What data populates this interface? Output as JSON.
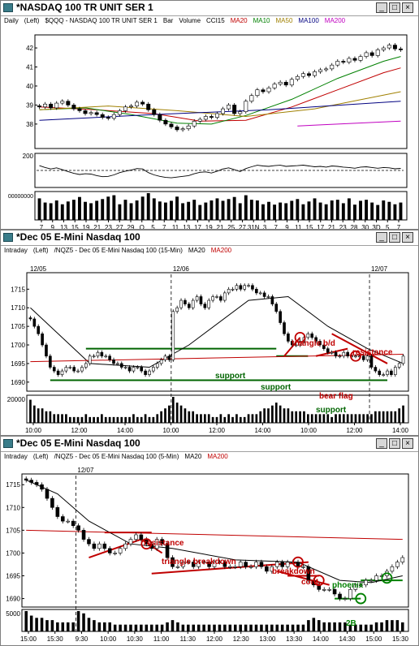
{
  "windows": [
    {
      "title": "*NASDAQ 100 TR UNIT SER 1",
      "timeframe": "Daily",
      "scale_side": "(Left)",
      "symbol": "$QQQ - NASDAQ 100 TR UNIT SER 1",
      "studies": [
        {
          "label": "Bar",
          "color": "#000000"
        },
        {
          "label": "Volume",
          "color": "#000000"
        },
        {
          "label": "CCI15",
          "color": "#000000"
        },
        {
          "label": "MA20",
          "color": "#c00000"
        },
        {
          "label": "MA10",
          "color": "#008000"
        },
        {
          "label": "MA50",
          "color": "#a08000"
        },
        {
          "label": "MA100",
          "color": "#000080"
        },
        {
          "label": "MA200",
          "color": "#c000c0"
        }
      ]
    },
    {
      "title": "*Dec 05 E-Mini Nasdaq 100",
      "timeframe": "Intraday",
      "scale_side": "(Left)",
      "symbol": "/NQZ5 - Dec 05 E-Mini Nasdaq 100 (15-Min)",
      "studies": [
        {
          "label": "MA20",
          "color": "#000000"
        },
        {
          "label": "MA200",
          "color": "#c00000"
        }
      ]
    },
    {
      "title": "*Dec 05 E-Mini Nasdaq 100",
      "timeframe": "Intraday",
      "scale_side": "(Left)",
      "symbol": "/NQZ5 - Dec 05 E-Mini Nasdaq 100 (5-Min)",
      "studies": [
        {
          "label": "MA20",
          "color": "#000000"
        },
        {
          "label": "MA200",
          "color": "#c00000"
        }
      ]
    }
  ],
  "chart_data": [
    {
      "type": "candlestick",
      "ylim": [
        36.8,
        42.6
      ],
      "y_ticks": [
        "42",
        "41",
        "40",
        "39",
        "38"
      ],
      "x_ticks": [
        "7",
        "9",
        "13",
        "15",
        "19",
        "21",
        "23",
        "27",
        "29",
        "O",
        "5",
        "7",
        "11",
        "13",
        "17",
        "19",
        "21",
        "25",
        "27",
        "31N",
        "3",
        "7",
        "9",
        "11",
        "15",
        "17",
        "21",
        "23",
        "28",
        "30",
        "3D",
        "5",
        "7"
      ],
      "close": [
        38.9,
        39.05,
        38.85,
        39.1,
        39.2,
        39.0,
        38.8,
        38.7,
        38.55,
        38.6,
        38.5,
        38.35,
        38.3,
        38.5,
        38.7,
        38.9,
        38.95,
        39.15,
        39.05,
        38.75,
        38.5,
        38.2,
        38.0,
        37.85,
        37.7,
        37.75,
        37.9,
        38.15,
        38.25,
        38.4,
        38.35,
        38.55,
        38.8,
        39.0,
        38.55,
        38.65,
        39.2,
        39.5,
        39.8,
        39.7,
        39.9,
        40.1,
        40.2,
        40.05,
        40.35,
        40.5,
        40.65,
        40.55,
        40.75,
        40.85,
        40.9,
        41.1,
        41.3,
        41.25,
        41.45,
        41.35,
        41.55,
        41.75,
        41.6,
        41.9,
        42.0,
        42.15,
        41.95,
        41.9
      ],
      "volume": [
        62,
        50,
        48,
        56,
        45,
        53,
        58,
        66,
        52,
        48,
        55,
        60,
        67,
        71,
        45,
        58,
        48,
        56,
        67,
        77,
        62,
        53,
        50,
        55,
        67,
        48,
        52,
        58,
        43,
        50,
        56,
        62,
        55,
        60,
        66,
        48,
        71,
        58,
        56,
        45,
        52,
        44,
        50,
        48,
        55,
        60,
        45,
        53,
        62,
        50,
        45,
        56,
        58,
        48,
        62,
        44,
        55,
        58,
        50,
        43,
        56,
        52,
        45,
        50
      ],
      "cci": [
        65,
        40,
        20,
        35,
        10,
        -15,
        -40,
        -55,
        -45,
        -50,
        -70,
        -85,
        -80,
        -60,
        -30,
        -10,
        5,
        25,
        20,
        -30,
        -60,
        -80,
        -95,
        -100,
        -90,
        -80,
        -70,
        -45,
        -25,
        -20,
        -35,
        -10,
        20,
        35,
        10,
        -15,
        25,
        50,
        70,
        60,
        55,
        65,
        70,
        55,
        60,
        65,
        72,
        60,
        50,
        55,
        45,
        60,
        55,
        45,
        40,
        30,
        45,
        50,
        40,
        30,
        40,
        35,
        22,
        28
      ],
      "series": [
        {
          "name": "MA20",
          "color": "#c00000",
          "values": [
            [
              0,
              38.9
            ],
            [
              10,
              38.75
            ],
            [
              20,
              38.55
            ],
            [
              28,
              38.15
            ],
            [
              36,
              38.2
            ],
            [
              44,
              38.9
            ],
            [
              52,
              39.8
            ],
            [
              60,
              40.7
            ],
            [
              63,
              40.95
            ]
          ]
        },
        {
          "name": "MA10",
          "color": "#008000",
          "values": [
            [
              0,
              38.75
            ],
            [
              8,
              38.85
            ],
            [
              16,
              38.5
            ],
            [
              24,
              38.05
            ],
            [
              30,
              38.0
            ],
            [
              36,
              38.45
            ],
            [
              44,
              39.3
            ],
            [
              52,
              40.4
            ],
            [
              60,
              41.3
            ],
            [
              63,
              41.55
            ]
          ]
        },
        {
          "name": "MA50",
          "color": "#a08000",
          "values": [
            [
              0,
              38.75
            ],
            [
              12,
              38.95
            ],
            [
              24,
              38.7
            ],
            [
              36,
              38.4
            ],
            [
              48,
              38.8
            ],
            [
              63,
              39.7
            ]
          ]
        },
        {
          "name": "MA100",
          "color": "#000080",
          "values": [
            [
              0,
              38.2
            ],
            [
              20,
              38.5
            ],
            [
              40,
              38.75
            ],
            [
              63,
              39.2
            ]
          ]
        },
        {
          "name": "MA200",
          "color": "#c000c0",
          "values": [
            [
              45,
              37.9
            ],
            [
              63,
              38.15
            ]
          ]
        }
      ]
    },
    {
      "type": "candlestick",
      "ylim": [
        1688,
        1719
      ],
      "y_ticks": [
        "1715",
        "1710",
        "1705",
        "1700",
        "1695",
        "1690"
      ],
      "x_ticks": [
        "10:00",
        "12:00",
        "14:00",
        "10:00",
        "12:00",
        "14:00",
        "10:00",
        "12:00",
        "14:00"
      ],
      "date_labels": [
        "12/05",
        "12/06",
        "12/07"
      ],
      "close": [
        1707,
        1705,
        1703,
        1700,
        1697,
        1694,
        1693,
        1692,
        1693,
        1694,
        1694,
        1693,
        1693,
        1694,
        1695,
        1697,
        1697,
        1698,
        1697,
        1697,
        1696,
        1695,
        1695,
        1694,
        1694,
        1693,
        1694,
        1694,
        1693,
        1692,
        1693,
        1694,
        1695,
        1696,
        1697,
        1696,
        1709,
        1710,
        1712,
        1711,
        1710,
        1712,
        1713,
        1711,
        1710,
        1712,
        1713,
        1713,
        1712,
        1714,
        1715,
        1715,
        1716,
        1715,
        1716,
        1716,
        1715,
        1714,
        1714,
        1713,
        1713,
        1711,
        1709,
        1706,
        1703,
        1701,
        1700,
        1700,
        1701,
        1702,
        1703,
        1702,
        1701,
        1700,
        1699,
        1698,
        1698,
        1697,
        1697,
        1698,
        1697,
        1697,
        1697,
        1697,
        1696,
        1697,
        1694,
        1693,
        1692,
        1692,
        1693,
        1692,
        1694,
        1695,
        1697
      ],
      "volume": [
        8,
        6,
        5,
        5,
        4,
        4,
        3,
        3,
        3,
        3,
        2,
        2,
        2,
        2,
        3,
        2,
        2,
        2,
        3,
        2,
        2,
        2,
        2,
        2,
        2,
        2,
        3,
        2,
        2,
        3,
        2,
        2,
        3,
        4,
        5,
        6,
        9,
        7,
        6,
        5,
        4,
        4,
        3,
        3,
        3,
        3,
        2,
        2,
        3,
        2,
        3,
        2,
        3,
        2,
        2,
        3,
        3,
        3,
        4,
        5,
        5,
        6,
        7,
        6,
        5,
        5,
        4,
        4,
        4,
        4,
        3,
        3,
        3,
        3,
        3,
        3,
        2,
        3,
        3,
        3,
        3,
        3,
        3,
        3,
        3,
        3,
        3,
        4,
        4,
        4,
        4,
        4,
        4,
        5,
        6
      ],
      "volume_label": "20000",
      "series": [
        {
          "name": "MA20",
          "color": "#000000",
          "values": [
            [
              0,
              1710
            ],
            [
              15,
              1695
            ],
            [
              30,
              1694
            ],
            [
              40,
              1700
            ],
            [
              55,
              1712
            ],
            [
              65,
              1713
            ],
            [
              75,
              1705
            ],
            [
              85,
              1699
            ],
            [
              94,
              1695
            ]
          ]
        },
        {
          "name": "MA200",
          "color": "#c00000",
          "values": [
            [
              0,
              1695.5
            ],
            [
              94,
              1697.5
            ]
          ]
        }
      ],
      "annotations": [
        {
          "text": "triangle b/d",
          "color": "#c00000"
        },
        {
          "text": "resistance",
          "color": "#c00000"
        },
        {
          "text": "support",
          "color": "#006400"
        },
        {
          "text": "support",
          "color": "#006400"
        },
        {
          "text": "bear flag",
          "color": "#c00000"
        },
        {
          "text": "support",
          "color": "#006400"
        }
      ]
    },
    {
      "type": "candlestick",
      "ylim": [
        1688.5,
        1717
      ],
      "y_ticks": [
        "1715",
        "1710",
        "1705",
        "1700",
        "1695",
        "1690"
      ],
      "x_ticks": [
        "15:00",
        "15:30",
        "9:30",
        "10:00",
        "10:30",
        "11:00",
        "11:30",
        "12:00",
        "12:30",
        "13:00",
        "13:30",
        "14:00",
        "14:30",
        "15:00",
        "15:30"
      ],
      "date_labels": [
        "12/07"
      ],
      "close": [
        1716,
        1715.5,
        1715,
        1714,
        1712,
        1710,
        1708,
        1707,
        1707,
        1706,
        1705,
        1703,
        1702,
        1701,
        1702,
        1701,
        1700,
        1700,
        1701,
        1702,
        1703,
        1704,
        1703,
        1702,
        1701,
        1703,
        1702,
        1699,
        1697,
        1697,
        1698,
        1698,
        1697,
        1698,
        1698,
        1697,
        1698,
        1698,
        1697,
        1697,
        1697,
        1698,
        1697,
        1697,
        1698,
        1697,
        1696,
        1697,
        1698,
        1697,
        1698,
        1698,
        1697,
        1697,
        1694,
        1693,
        1692,
        1692,
        1692,
        1691,
        1690,
        1690,
        1692,
        1693,
        1693,
        1694,
        1694,
        1695,
        1695,
        1696,
        1697,
        1698,
        1699
      ],
      "volume": [
        9,
        7,
        6,
        6,
        5,
        5,
        4,
        4,
        4,
        4,
        9,
        8,
        6,
        5,
        4,
        4,
        4,
        3,
        3,
        3,
        3,
        3,
        3,
        3,
        3,
        3,
        3,
        4,
        5,
        4,
        3,
        3,
        3,
        3,
        3,
        3,
        3,
        3,
        3,
        3,
        3,
        3,
        3,
        3,
        3,
        3,
        3,
        3,
        3,
        3,
        3,
        3,
        3,
        3,
        5,
        6,
        5,
        4,
        4,
        4,
        4,
        4,
        3,
        3,
        3,
        3,
        3,
        4,
        4,
        5,
        5,
        5,
        4
      ],
      "volume_label": "5000",
      "series": [
        {
          "name": "MA20",
          "color": "#000000",
          "values": [
            [
              0,
              1716
            ],
            [
              6,
              1713
            ],
            [
              12,
              1707
            ],
            [
              20,
              1702
            ],
            [
              28,
              1701
            ],
            [
              40,
              1698.5
            ],
            [
              52,
              1698
            ],
            [
              60,
              1694
            ],
            [
              66,
              1693.5
            ],
            [
              72,
              1695
            ]
          ]
        },
        {
          "name": "MA200",
          "color": "#c00000",
          "values": [
            [
              0,
              1705
            ],
            [
              72,
              1703
            ]
          ]
        }
      ],
      "annotations": [
        {
          "text": "resistance",
          "color": "#c00000"
        },
        {
          "text": "triangle breakdown",
          "color": "#c00000"
        },
        {
          "text": "breakdown",
          "color": "#c00000"
        },
        {
          "text": "cont.",
          "color": "#c00000"
        },
        {
          "text": "phoenix",
          "color": "#008000"
        },
        {
          "text": "2B",
          "color": "#008000"
        }
      ]
    }
  ]
}
